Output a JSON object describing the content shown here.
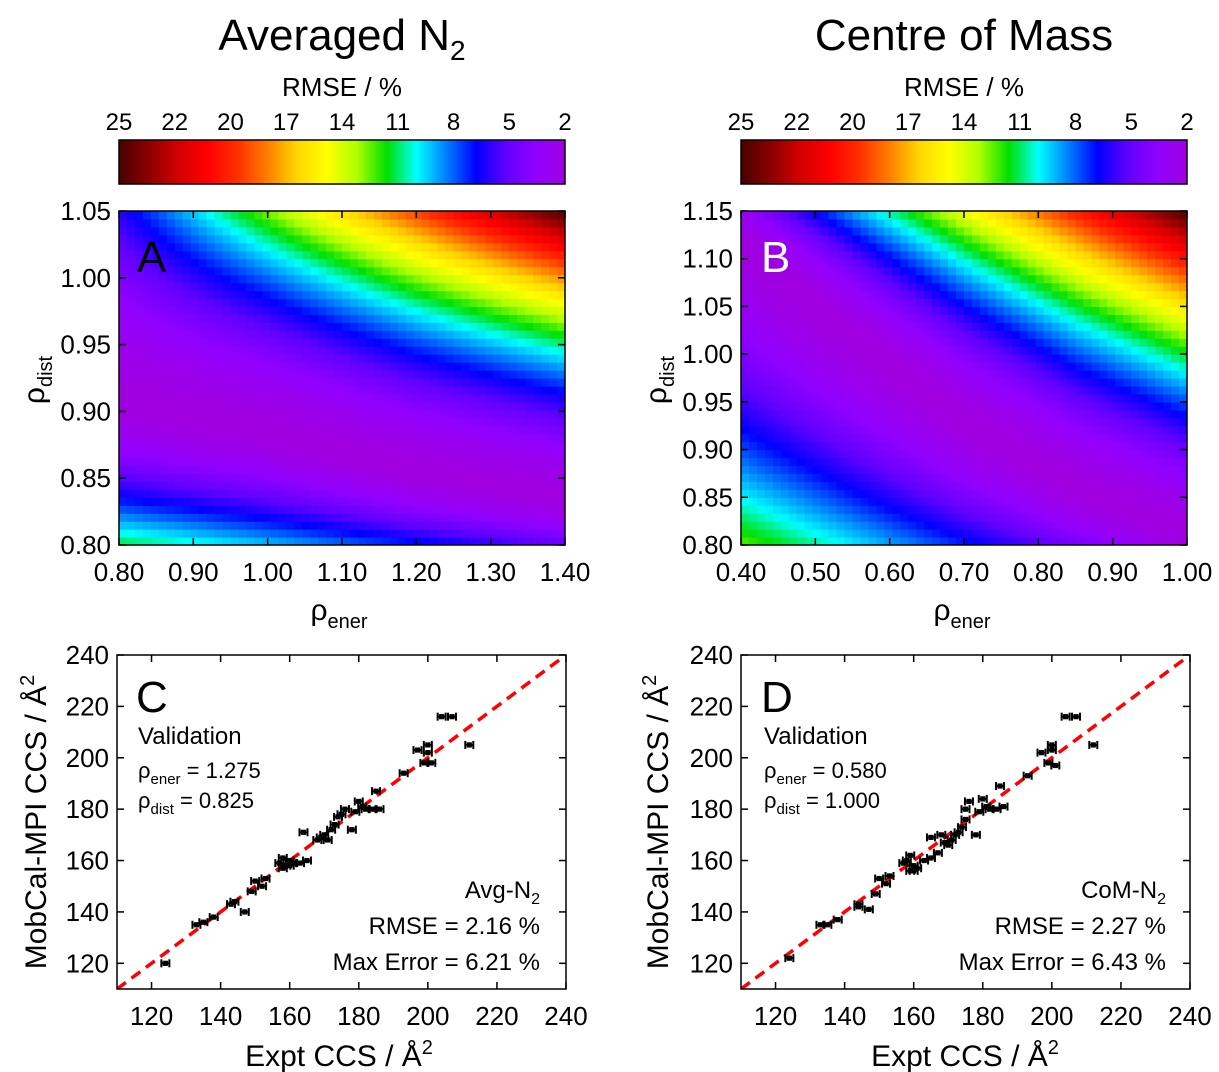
{
  "colors": {
    "colormap": [
      "#4a0000",
      "#8b0000",
      "#d40000",
      "#ff0000",
      "#ff3000",
      "#ff7f00",
      "#ffd700",
      "#ffff00",
      "#b0ff00",
      "#00e000",
      "#00ffff",
      "#0080ff",
      "#0000ff",
      "#6000ff",
      "#9000ff",
      "#a000e0"
    ],
    "ref_line": "#ff0000",
    "points": "#000000",
    "label_dark": "#000000",
    "label_light": "#ffffff"
  },
  "colorbar": {
    "title": "RMSE / %",
    "ticks": [
      "25",
      "22",
      "20",
      "17",
      "14",
      "11",
      "8",
      "5",
      "2"
    ]
  },
  "chart_data": [
    {
      "id": "A",
      "type": "heatmap",
      "title": "Averaged N",
      "title_sub": "2",
      "panel_label": "A",
      "xlabel": "ρ",
      "xlabel_sub": "ener",
      "ylabel": "ρ",
      "ylabel_sub": "dist",
      "xlim": [
        0.8,
        1.4
      ],
      "ylim": [
        0.8,
        1.05
      ],
      "xticks": [
        "0.80",
        "0.90",
        "1.00",
        "1.10",
        "1.20",
        "1.30",
        "1.40"
      ],
      "yticks": [
        "0.80",
        "0.85",
        "0.90",
        "0.95",
        "1.00",
        "1.05"
      ],
      "zlim": [
        2,
        25
      ],
      "minimum_valley": [
        [
          0.8,
          0.905
        ],
        [
          1.0,
          0.885
        ],
        [
          1.2,
          0.855
        ],
        [
          1.4,
          0.835
        ]
      ],
      "corner_values": {
        "x0_y0": 11,
        "x0_y1": 6,
        "x1_y0": 5,
        "x1_y1": 25
      }
    },
    {
      "id": "B",
      "type": "heatmap",
      "title": "Centre of Mass",
      "panel_label": "B",
      "xlabel": "ρ",
      "xlabel_sub": "ener",
      "ylabel": "ρ",
      "ylabel_sub": "dist",
      "xlim": [
        0.4,
        1.0
      ],
      "ylim": [
        0.8,
        1.15
      ],
      "xticks": [
        "0.40",
        "0.50",
        "0.60",
        "0.70",
        "0.80",
        "0.90",
        "1.00"
      ],
      "yticks": [
        "0.80",
        "0.85",
        "0.90",
        "0.95",
        "1.00",
        "1.05",
        "1.10",
        "1.15"
      ],
      "zlim": [
        2,
        25
      ],
      "minimum_valley": [
        [
          0.4,
          1.12
        ],
        [
          0.55,
          1.02
        ],
        [
          0.7,
          0.93
        ],
        [
          0.85,
          0.86
        ],
        [
          1.0,
          0.81
        ]
      ],
      "corner_values": {
        "x0_y0": 12,
        "x0_y1": 3,
        "x1_y0": 2,
        "x1_y1": 25
      }
    },
    {
      "id": "C",
      "type": "scatter",
      "panel_label": "C",
      "xlabel": "Expt CCS / Å",
      "xlabel_sup": "2",
      "ylabel": "MobCal-MPI CCS / Å",
      "ylabel_sup": "2",
      "xlim": [
        110,
        240
      ],
      "ylim": [
        110,
        240
      ],
      "xticks": [
        "120",
        "140",
        "160",
        "180",
        "200",
        "220",
        "240"
      ],
      "yticks": [
        "120",
        "140",
        "160",
        "180",
        "200",
        "220",
        "240"
      ],
      "validation_label": "Validation",
      "params": [
        {
          "sym": "ρ",
          "sub": "ener",
          "value": " = 1.275"
        },
        {
          "sym": "ρ",
          "sub": "dist",
          "value": " = 0.825"
        }
      ],
      "series_label": "Avg-N",
      "series_label_sub": "2",
      "stats": [
        "RMSE = 2.16 %",
        "Max Error = 6.21 %"
      ],
      "reference_line": [
        [
          110,
          110
        ],
        [
          240,
          240
        ]
      ],
      "points": [
        [
          124,
          120
        ],
        [
          133,
          135
        ],
        [
          135,
          136
        ],
        [
          138,
          138
        ],
        [
          143,
          143
        ],
        [
          144,
          144
        ],
        [
          147,
          140
        ],
        [
          149,
          148
        ],
        [
          150,
          152
        ],
        [
          152,
          150
        ],
        [
          153,
          153
        ],
        [
          157,
          159
        ],
        [
          158,
          157
        ],
        [
          158,
          161
        ],
        [
          159,
          158
        ],
        [
          160,
          158
        ],
        [
          160,
          160
        ],
        [
          161,
          159
        ],
        [
          163,
          159
        ],
        [
          164,
          171
        ],
        [
          165,
          160
        ],
        [
          168,
          168
        ],
        [
          169,
          169
        ],
        [
          170,
          170
        ],
        [
          171,
          168
        ],
        [
          172,
          172
        ],
        [
          173,
          174
        ],
        [
          174,
          177
        ],
        [
          175,
          178
        ],
        [
          176,
          180
        ],
        [
          178,
          172
        ],
        [
          179,
          179
        ],
        [
          180,
          183
        ],
        [
          181,
          181
        ],
        [
          182,
          180
        ],
        [
          184,
          180
        ],
        [
          185,
          187
        ],
        [
          186,
          180
        ],
        [
          193,
          194
        ],
        [
          197,
          203
        ],
        [
          199,
          198
        ],
        [
          200,
          202
        ],
        [
          200,
          205
        ],
        [
          201,
          198
        ],
        [
          204,
          216
        ],
        [
          207,
          216
        ],
        [
          212,
          205
        ]
      ]
    },
    {
      "id": "D",
      "type": "scatter",
      "panel_label": "D",
      "xlabel": "Expt CCS / Å",
      "xlabel_sup": "2",
      "ylabel": "MobCal-MPI CCS / Å",
      "ylabel_sup": "2",
      "xlim": [
        110,
        240
      ],
      "ylim": [
        110,
        240
      ],
      "xticks": [
        "120",
        "140",
        "160",
        "180",
        "200",
        "220",
        "240"
      ],
      "yticks": [
        "120",
        "140",
        "160",
        "180",
        "200",
        "220",
        "240"
      ],
      "validation_label": "Validation",
      "params": [
        {
          "sym": "ρ",
          "sub": "ener",
          "value": " = 0.580"
        },
        {
          "sym": "ρ",
          "sub": "dist",
          "value": " = 1.000"
        }
      ],
      "series_label": "CoM-N",
      "series_label_sub": "2",
      "stats": [
        "RMSE = 2.27 %",
        "Max Error = 6.43 %"
      ],
      "reference_line": [
        [
          110,
          110
        ],
        [
          240,
          240
        ]
      ],
      "points": [
        [
          124,
          122
        ],
        [
          133,
          135
        ],
        [
          135,
          135
        ],
        [
          138,
          137
        ],
        [
          144,
          142
        ],
        [
          144,
          143
        ],
        [
          147,
          141
        ],
        [
          149,
          147
        ],
        [
          150,
          153
        ],
        [
          152,
          151
        ],
        [
          153,
          154
        ],
        [
          157,
          159
        ],
        [
          158,
          160
        ],
        [
          159,
          156
        ],
        [
          159,
          162
        ],
        [
          160,
          158
        ],
        [
          160,
          156
        ],
        [
          161,
          157
        ],
        [
          163,
          160
        ],
        [
          165,
          161
        ],
        [
          165,
          169
        ],
        [
          167,
          163
        ],
        [
          168,
          170
        ],
        [
          169,
          167
        ],
        [
          170,
          166
        ],
        [
          171,
          168
        ],
        [
          172,
          170
        ],
        [
          173,
          171
        ],
        [
          174,
          173
        ],
        [
          175,
          176
        ],
        [
          175,
          180
        ],
        [
          176,
          183
        ],
        [
          178,
          170
        ],
        [
          179,
          179
        ],
        [
          180,
          184
        ],
        [
          181,
          181
        ],
        [
          182,
          180
        ],
        [
          184,
          180
        ],
        [
          185,
          189
        ],
        [
          186,
          181
        ],
        [
          193,
          193
        ],
        [
          197,
          202
        ],
        [
          199,
          198
        ],
        [
          200,
          203
        ],
        [
          200,
          205
        ],
        [
          201,
          197
        ],
        [
          204,
          216
        ],
        [
          207,
          216
        ],
        [
          212,
          205
        ]
      ]
    }
  ]
}
